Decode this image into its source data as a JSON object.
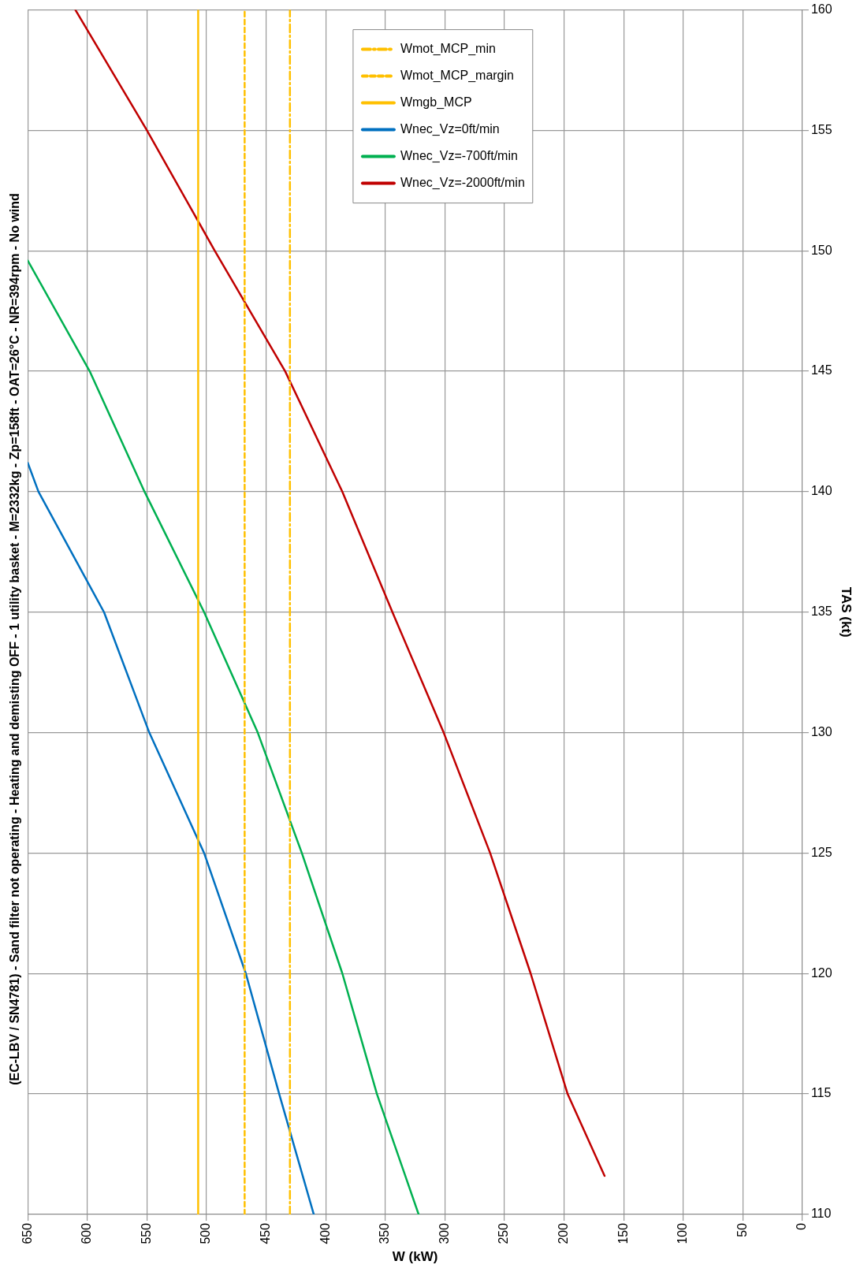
{
  "chart_data": {
    "type": "line",
    "title": "(EC-LBV / SN4781) - Sand filter not operating - Heating and demisting OFF - 1 utility basket - M=2332kg - Zp=158ft - OAT=26°C - NR=394rpm - No wind",
    "xlabel": "W (kW)",
    "ylabel": "TAS (kt)",
    "xlim": [
      650,
      0
    ],
    "ylim": [
      110,
      160
    ],
    "xticks": [
      650,
      600,
      550,
      500,
      450,
      400,
      350,
      300,
      250,
      200,
      150,
      100,
      50,
      0
    ],
    "yticks": [
      110,
      115,
      120,
      125,
      130,
      135,
      140,
      145,
      150,
      155,
      160
    ],
    "grid": true,
    "legend": "top",
    "marker": "none",
    "series": [
      {
        "name": "Wmot_MCP_min",
        "color": "#ffc000",
        "line_style": "dashdot",
        "x": [
          430,
          430
        ],
        "values": [
          110,
          160
        ]
      },
      {
        "name": "Wmot_MCP_margin",
        "color": "#ffc000",
        "line_style": "dashed",
        "x": [
          468,
          468
        ],
        "values": [
          110,
          160
        ]
      },
      {
        "name": "Wmgb_MCP",
        "color": "#ffc000",
        "line_style": "solid",
        "x": [
          507,
          507
        ],
        "values": [
          110,
          160
        ]
      },
      {
        "name": "Wnec_Vz=0ft/min",
        "color": "#0070c0",
        "line_style": "solid",
        "x": [
          410,
          439,
          467,
          502,
          548,
          586,
          641,
          650
        ],
        "values": [
          110,
          115,
          120,
          125,
          130,
          135,
          140,
          141.2
        ]
      },
      {
        "name": "Wnec_Vz=-700ft/min",
        "color": "#00b050",
        "line_style": "solid",
        "x": [
          322,
          357,
          386,
          420,
          457,
          502,
          552,
          598,
          650
        ],
        "values": [
          110,
          115,
          120,
          125,
          130,
          135,
          140,
          145,
          149.6
        ]
      },
      {
        "name": "Wnec_Vz=-2000ft/min",
        "color": "#c00000",
        "line_style": "solid",
        "x": [
          166,
          197,
          228,
          262,
          301,
          344,
          386,
          434,
          493,
          550,
          610
        ],
        "values": [
          111.6,
          115,
          120,
          125,
          130,
          135,
          140,
          145,
          150,
          155,
          160
        ]
      }
    ]
  }
}
